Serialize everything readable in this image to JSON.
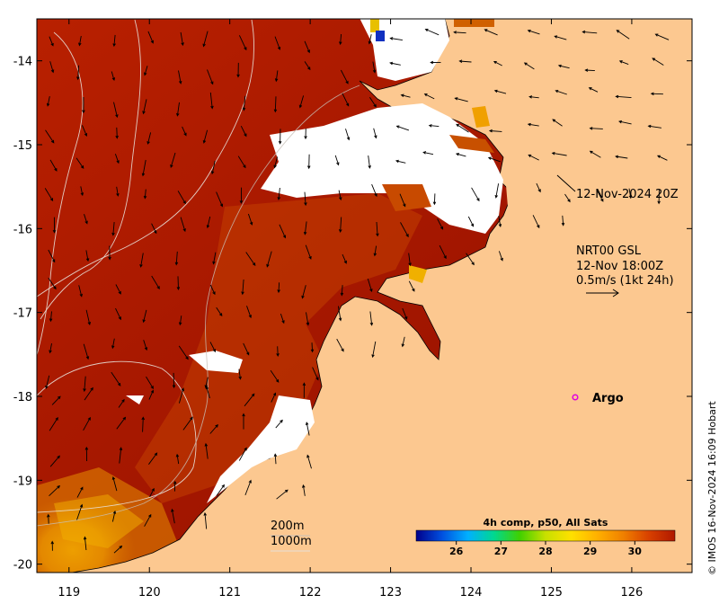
{
  "map": {
    "lon_ticks": [
      "119",
      "120",
      "121",
      "122",
      "123",
      "124",
      "125",
      "126"
    ],
    "lat_ticks": [
      "-14",
      "-15",
      "-16",
      "-17",
      "-18",
      "-19",
      "-20"
    ],
    "extent": {
      "lon_min": 118.6,
      "lon_max": 126.75,
      "lat_min": -20.1,
      "lat_max": -13.5
    },
    "colors": {
      "land": "#fcc890",
      "sst_warm": "#a81800",
      "sst_mid": "#d45a00",
      "sst_cool": "#f0a000",
      "no_data": "#ffffff"
    }
  },
  "annotations": {
    "timestamp": "12-Nov-2024 20Z",
    "current_model": "NRT00 GSL",
    "current_time": "12-Nov 18:00Z",
    "current_scale": "0.5m/s (1kt 24h)",
    "argo_label": "Argo",
    "argo_marker_color": "#e000e0",
    "contour_200": "200m",
    "contour_1000": "1000m"
  },
  "colorbar": {
    "title": "4h comp, p50, All Sats",
    "ticks": [
      "26",
      "27",
      "28",
      "29",
      "30"
    ],
    "colors": [
      "#00008b",
      "#0050e0",
      "#00b0ff",
      "#00d890",
      "#40d000",
      "#c8e000",
      "#ffe000",
      "#ffb000",
      "#f08000",
      "#d84000",
      "#b01800"
    ]
  },
  "credit": "© IMOS 16-Nov-2024 16:09 Hobart"
}
